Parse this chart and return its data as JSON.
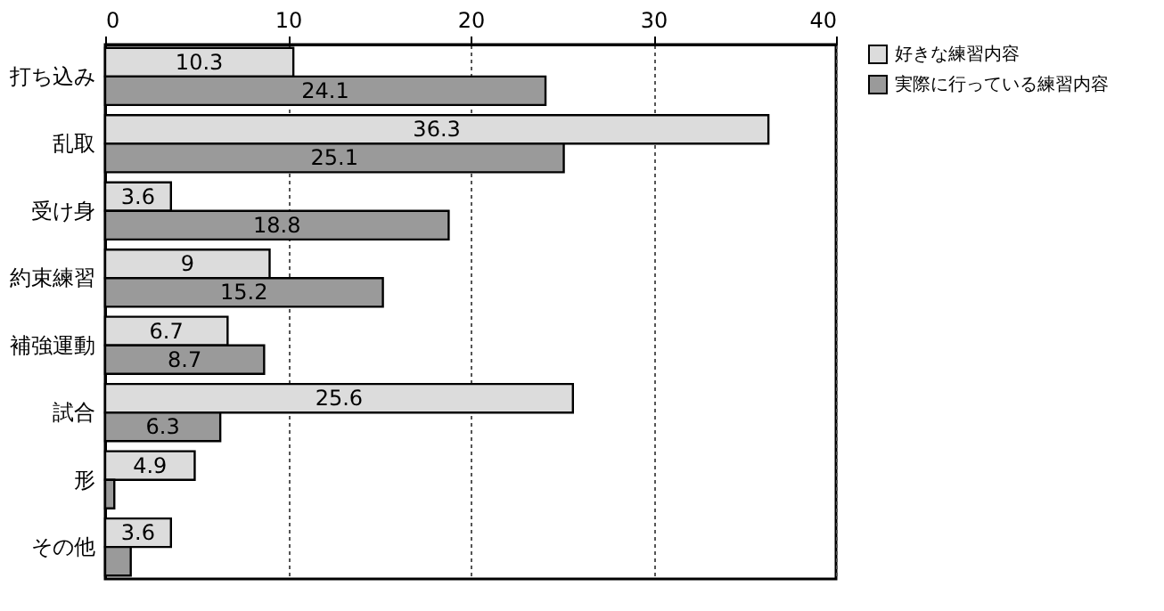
{
  "chart_data": {
    "type": "bar",
    "orientation": "horizontal",
    "categories": [
      "打ち込み",
      "乱取",
      "受け身",
      "約束練習",
      "補強運動",
      "試合",
      "形",
      "その他"
    ],
    "series": [
      {
        "name": "好きな練習内容",
        "color": "#dcdcdc",
        "values": [
          10.3,
          36.3,
          3.6,
          9,
          6.7,
          25.6,
          4.9,
          3.6
        ],
        "value_labels": [
          "10.3",
          "36.3",
          "3.6",
          "9",
          "6.7",
          "25.6",
          "4.9",
          "3.6"
        ]
      },
      {
        "name": "実際に行っている練習内容",
        "color": "#9a9a9a",
        "values": [
          24.1,
          25.1,
          18.8,
          15.2,
          8.7,
          6.3,
          0.5,
          1.4
        ],
        "value_labels": [
          "24.1",
          "25.1",
          "18.8",
          "15.2",
          "8.7",
          "6.3",
          null,
          null
        ]
      }
    ],
    "xlim": [
      0,
      40
    ],
    "xticks": [
      0,
      10,
      20,
      30,
      40
    ],
    "grid": "x",
    "legend": "top right"
  }
}
